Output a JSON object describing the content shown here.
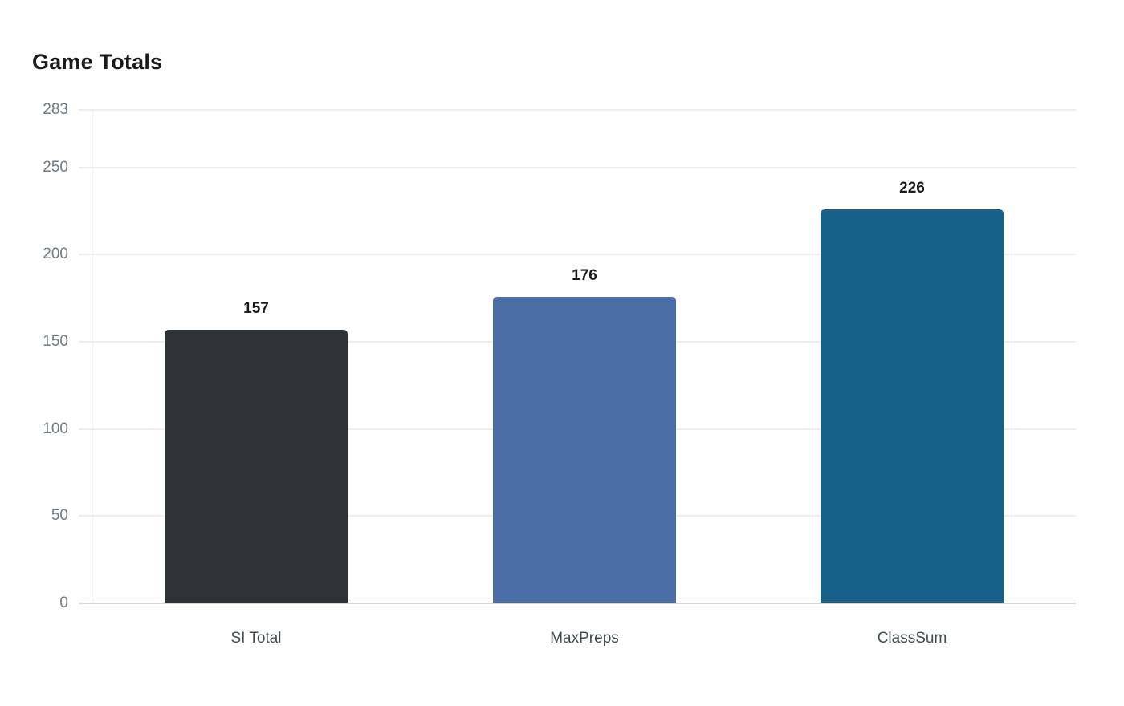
{
  "title": "Game Totals",
  "chart_data": {
    "type": "bar",
    "title": "Game Totals",
    "categories": [
      "SI Total",
      "MaxPreps",
      "ClassSum"
    ],
    "values": [
      157,
      176,
      226
    ],
    "value_labels": [
      "157",
      "176",
      "226"
    ],
    "bar_colors": [
      "#2d3438",
      "#4b6da6",
      "#16608a"
    ],
    "xlabel": "",
    "ylabel": "",
    "ylim": [
      0,
      283
    ],
    "yticks": [
      0,
      50,
      100,
      150,
      200,
      250,
      283
    ],
    "grid": true,
    "legend": false,
    "colors": {
      "background": "#ffffff",
      "title_text": "#1a1a1a",
      "gridline": "#ededed",
      "baseline": "#d9d9d9",
      "y_tick_text": "#6d7a84",
      "x_label_text": "#414b52",
      "value_label_text": "#1c1c1c"
    }
  }
}
